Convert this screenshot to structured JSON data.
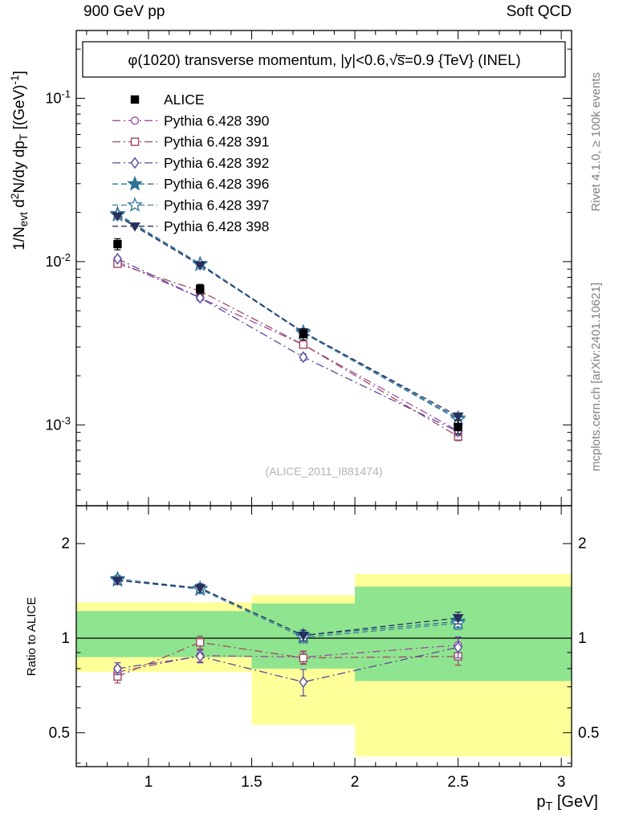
{
  "page": {
    "top_left_label": "900 GeV pp",
    "top_right_label": "Soft QCD",
    "side_label_top": "Rivet 4.1.0, ≥ 100k events",
    "side_label_bottom": "mcplots.cern.ch [arXiv:2401.10621]",
    "watermark": "(ALICE_2011_I881474)"
  },
  "chart_data": {
    "type": "line",
    "title": "φ(1020) transverse momentum, |y|<0.6,√s̅=0.9 {TeV} (INEL)",
    "xlabel": "p_T [GeV]",
    "xlabel_parts": [
      {
        "t": "p"
      },
      {
        "t": "T",
        "s": "sub"
      },
      {
        "t": " [GeV]"
      }
    ],
    "ylabel": "1/N_evt d^2N/dy dp_T [(GeV)^-1]",
    "ylabel_parts": [
      {
        "t": "1/N"
      },
      {
        "t": "evt",
        "s": "sub"
      },
      {
        "t": "  d"
      },
      {
        "t": "2",
        "s": "sup"
      },
      {
        "t": "N/dy dp"
      },
      {
        "t": "T",
        "s": "sub"
      },
      {
        "t": " [(GeV)"
      },
      {
        "t": "-1",
        "s": "sup"
      },
      {
        "t": "]"
      }
    ],
    "ratio_ylabel": "Ratio to ALICE",
    "xlim": [
      0.65,
      3.05
    ],
    "main_ylim": [
      0.00032,
      0.26
    ],
    "ratio_ylim": [
      0.39,
      2.64
    ],
    "y_scale": "log",
    "ratio_scale": "log",
    "grid": false,
    "legend_position": "top-left",
    "x_major_ticks": [
      1,
      1.5,
      2,
      2.5,
      3
    ],
    "x_tick_labels": [
      "1",
      "1.5",
      "2",
      "2.5",
      "3"
    ],
    "x_minor_step": 0.1,
    "main_y_major_ticks": [
      {
        "value": 0.1,
        "parts": [
          {
            "t": "10"
          },
          {
            "t": "-1",
            "s": "sup"
          }
        ]
      },
      {
        "value": 0.01,
        "parts": [
          {
            "t": "10"
          },
          {
            "t": "-2",
            "s": "sup"
          }
        ]
      },
      {
        "value": 0.001,
        "parts": [
          {
            "t": "10"
          },
          {
            "t": "-3",
            "s": "sup"
          }
        ]
      }
    ],
    "ratio_y_major_ticks": [
      {
        "value": 2,
        "label": "2"
      },
      {
        "value": 1,
        "label": "1"
      },
      {
        "value": 0.5,
        "label": "0.5"
      }
    ],
    "ratio_y_minor_ticks": [
      0.4,
      0.6,
      0.7,
      0.8,
      0.9
    ],
    "ratio_reference": 1,
    "x": [
      0.85,
      1.25,
      1.75,
      2.5
    ],
    "series": [
      {
        "name": "ALICE",
        "color": "#000000",
        "marker": "square",
        "filled": true,
        "line": "none",
        "values": [
          0.0128,
          0.0068,
          0.0036,
          0.00097
        ],
        "yerr": [
          0.001,
          0.00045,
          0.00028,
          9e-05
        ]
      },
      {
        "name": "Pythia 6.428 390",
        "color": "#9c4fa0",
        "marker": "circle",
        "filled": false,
        "line": "dashdot",
        "values": [
          0.01,
          0.006,
          0.0031,
          0.00092
        ],
        "yerr": [
          0.0003,
          0.0002,
          0.00012,
          5e-05
        ],
        "ratio": [
          0.78,
          0.88,
          0.87,
          0.95
        ],
        "ratio_err": [
          0.035,
          0.04,
          0.04,
          0.06
        ]
      },
      {
        "name": "Pythia 6.428 391",
        "color": "#a04a5e",
        "marker": "square",
        "filled": false,
        "line": "dashdot",
        "values": [
          0.0097,
          0.0066,
          0.0031,
          0.00085
        ],
        "yerr": [
          0.0003,
          0.0002,
          0.00012,
          5e-05
        ],
        "ratio": [
          0.755,
          0.97,
          0.865,
          0.875
        ],
        "ratio_err": [
          0.035,
          0.045,
          0.04,
          0.055
        ]
      },
      {
        "name": "Pythia 6.428 392",
        "color": "#5848a0",
        "marker": "diamond",
        "filled": false,
        "line": "dashdot",
        "values": [
          0.0104,
          0.006,
          0.0026,
          0.00091
        ],
        "yerr": [
          0.0003,
          0.0002,
          0.00012,
          5e-05
        ],
        "ratio": [
          0.8,
          0.875,
          0.725,
          0.935
        ],
        "ratio_err": [
          0.035,
          0.04,
          0.07,
          0.07
        ]
      },
      {
        "name": "Pythia 6.428 396",
        "color": "#2e7296",
        "marker": "star",
        "filled": true,
        "line": "dashed",
        "values": [
          0.0196,
          0.0097,
          0.0037,
          0.0011
        ],
        "yerr": [
          0.0004,
          0.0002,
          0.00012,
          5e-05
        ],
        "ratio": [
          1.545,
          1.44,
          1.02,
          1.13
        ],
        "ratio_err": [
          0.04,
          0.045,
          0.04,
          0.05
        ]
      },
      {
        "name": "Pythia 6.428 397",
        "color": "#3c7ea0",
        "marker": "star",
        "filled": false,
        "line": "dashed",
        "values": [
          0.0193,
          0.0096,
          0.00365,
          0.00108
        ],
        "yerr": [
          0.0004,
          0.0002,
          0.00012,
          5e-05
        ],
        "ratio": [
          1.53,
          1.43,
          1.005,
          1.115
        ],
        "ratio_err": [
          0.04,
          0.045,
          0.04,
          0.05
        ]
      },
      {
        "name": "Pythia 6.428 398",
        "color": "#283060",
        "marker": "triangle-down",
        "filled": true,
        "line": "dashed",
        "values": [
          0.019,
          0.0095,
          0.0037,
          0.00113
        ],
        "yerr": [
          0.0004,
          0.0002,
          0.00012,
          5e-05
        ],
        "ratio": [
          1.525,
          1.445,
          1.02,
          1.16
        ],
        "ratio_err": [
          0.04,
          0.045,
          0.04,
          0.05
        ]
      }
    ],
    "ratio_bands": [
      {
        "x0": 0.65,
        "x1": 1.5,
        "yellow": [
          0.78,
          1.3
        ],
        "green": [
          0.87,
          1.22
        ]
      },
      {
        "x0": 1.5,
        "x1": 2.0,
        "yellow": [
          0.53,
          1.37
        ],
        "green": [
          0.8,
          1.29
        ]
      },
      {
        "x0": 2.0,
        "x1": 3.05,
        "yellow": [
          0.42,
          1.6
        ],
        "green": [
          0.73,
          1.46
        ]
      }
    ],
    "colors": {
      "band_yellow": "#ffff99",
      "band_green": "#8fe58f",
      "reference_line": "#000000",
      "frame": "#000000"
    }
  }
}
